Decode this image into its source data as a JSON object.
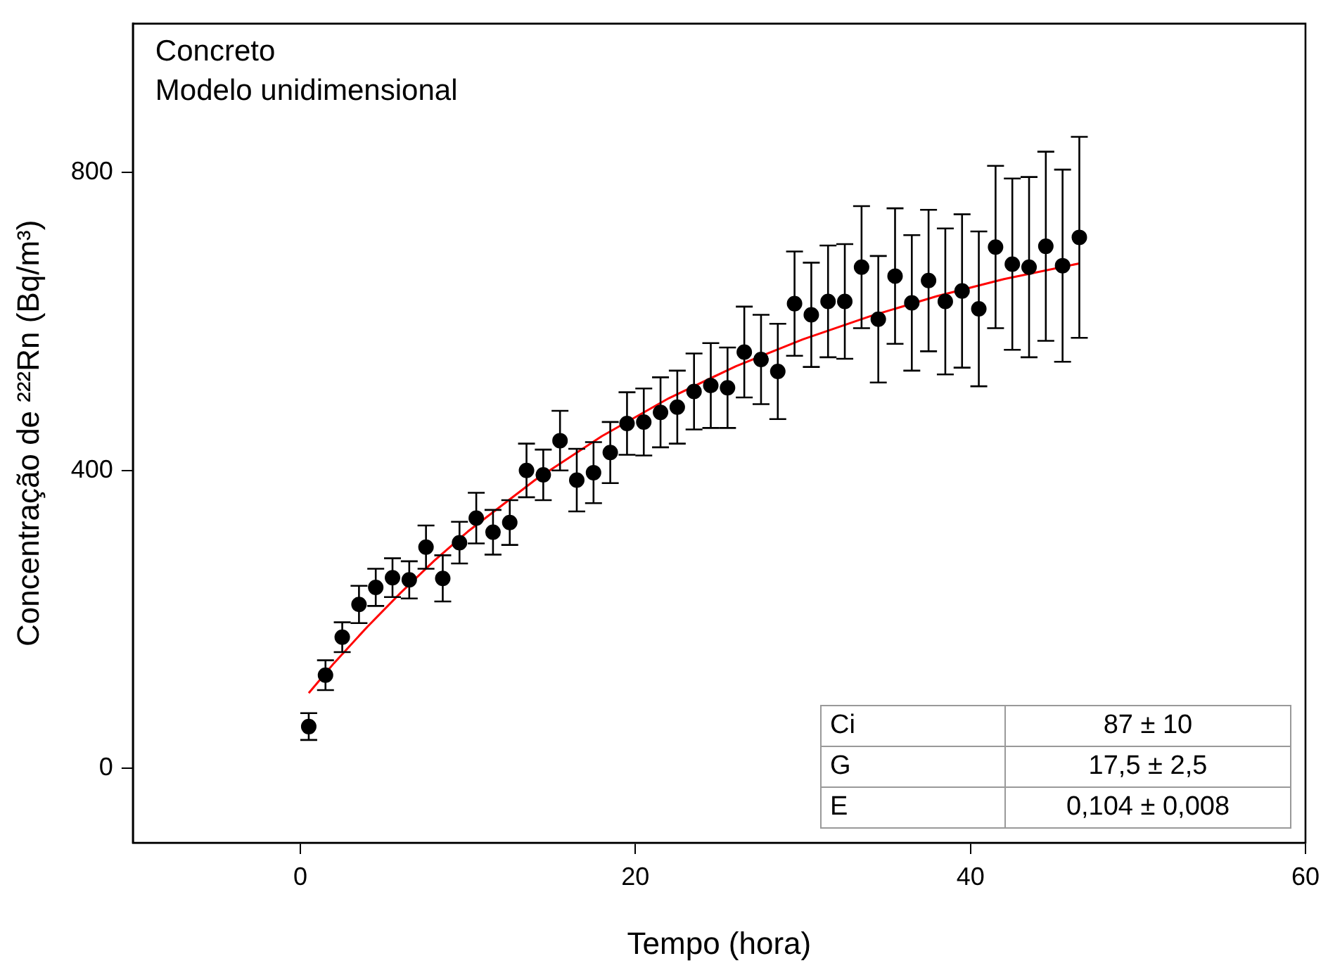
{
  "chart_data": {
    "type": "scatter",
    "title": "Concreto",
    "subtitle": "Modelo unidimensional",
    "xlabel": "Tempo (hora)",
    "ylabel": "Concentração de ²²²Rn (Bq/m³)",
    "xlim": [
      -10,
      60
    ],
    "xticks": [
      0,
      20,
      40,
      60
    ],
    "ylim": [
      -100,
      1000
    ],
    "yticks": [
      0,
      400,
      800
    ],
    "grid": false,
    "legend": false,
    "annotations": [
      "Ci",
      "87 ± 10",
      "G",
      "17,5 ± 2,5",
      "E",
      "0,104 ± 0,008"
    ],
    "series": [
      {
        "color": "#000000",
        "marker": "circle",
        "x": [
          0.5,
          1.5,
          2.5,
          3.5,
          4.5,
          5.5,
          6.5,
          7.5,
          8.5,
          9.5,
          10.5,
          11.5,
          12.5,
          13.5,
          14.5,
          15.5,
          16.5,
          17.5,
          18.5,
          19.5,
          20.5,
          21.5,
          22.5,
          23.5,
          24.5,
          25.5,
          26.5,
          27.5,
          28.5,
          29.5,
          30.5,
          31.5,
          32.5,
          33.5,
          34.5,
          35.5,
          36.5,
          37.5,
          38.5,
          39.5,
          40.5,
          41.5,
          42.5,
          43.5,
          44.5,
          45.5,
          46.5
        ],
        "values": [
          56,
          125,
          176,
          220,
          243,
          256,
          253,
          297,
          255,
          303,
          336,
          317,
          330,
          400,
          394,
          440,
          387,
          397,
          424,
          463,
          465,
          478,
          485,
          506,
          514,
          511,
          559,
          549,
          533,
          624,
          609,
          627,
          627,
          673,
          603,
          661,
          625,
          655,
          627,
          641,
          617,
          700,
          677,
          673,
          701,
          675,
          713
        ],
        "errors": [
          18,
          20,
          20,
          25,
          25,
          26,
          25,
          29,
          31,
          28,
          34,
          30,
          30,
          36,
          34,
          40,
          42,
          41,
          41,
          42,
          45,
          47,
          49,
          51,
          57,
          54,
          61,
          60,
          64,
          70,
          70,
          75,
          77,
          82,
          85,
          91,
          91,
          95,
          98,
          103,
          104,
          109,
          115,
          121,
          127,
          129,
          135
        ]
      },
      {
        "type": "line",
        "color": "#ff0000",
        "marker": "none",
        "line_style": "solid",
        "x": [
          0.5,
          2,
          4,
          6,
          8,
          10,
          14,
          18,
          22,
          26,
          30,
          34,
          38,
          42,
          46.5
        ],
        "values": [
          101,
          141,
          190,
          236,
          279,
          318,
          387,
          446,
          497,
          540,
          576,
          607,
          634,
          657,
          678
        ]
      }
    ]
  }
}
